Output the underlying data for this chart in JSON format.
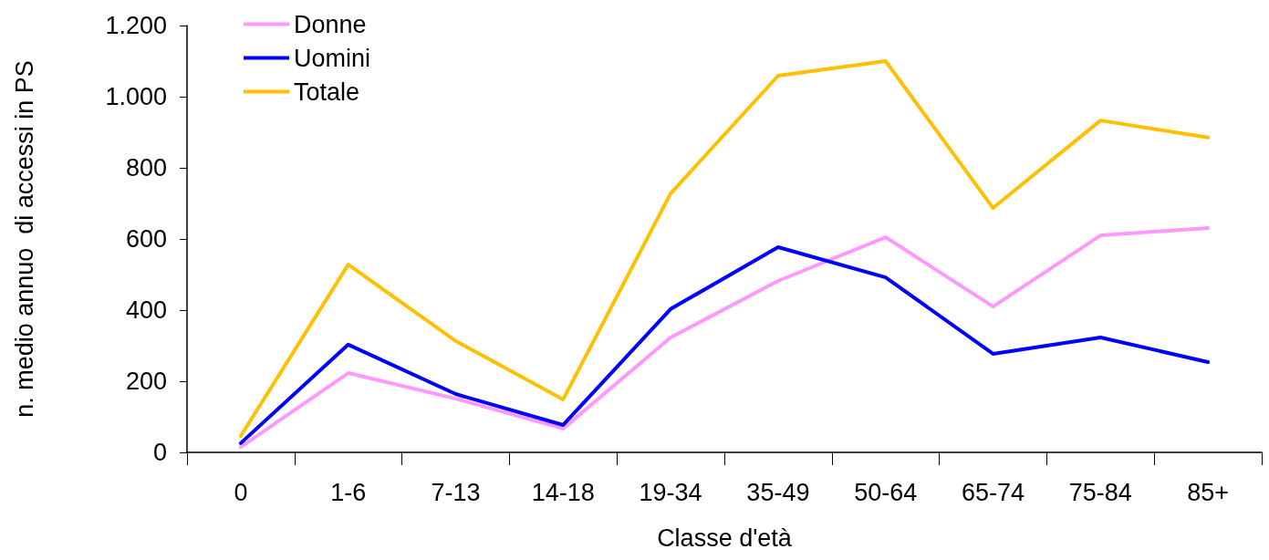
{
  "chart_data": {
    "type": "line",
    "xlabel": "Classe d'età",
    "ylabel": "n. medio annuo  di accessi in PS",
    "categories": [
      "0",
      "1-6",
      "7-13",
      "14-18",
      "19-34",
      "35-49",
      "50-64",
      "65-74",
      "75-84",
      "85+"
    ],
    "series": [
      {
        "name": "Donne",
        "color": "#ff99ff",
        "values": [
          15,
          223,
          151,
          67,
          323,
          482,
          605,
          410,
          610,
          631
        ]
      },
      {
        "name": "Uomini",
        "color": "#0000ff",
        "values": [
          26,
          303,
          164,
          77,
          403,
          577,
          492,
          277,
          323,
          254
        ]
      },
      {
        "name": "Totale",
        "color": "#ffc000",
        "values": [
          46,
          528,
          313,
          149,
          728,
          1059,
          1100,
          687,
          933,
          885
        ]
      }
    ],
    "ylim": [
      0,
      1200
    ],
    "yticks": [
      0,
      200,
      400,
      600,
      800,
      {
        "value": 1000,
        "label": "1.000"
      },
      {
        "value": 1200,
        "label": "1.200"
      }
    ],
    "grid": false,
    "legend": "top left",
    "marker": "none",
    "line_style": "solid"
  }
}
